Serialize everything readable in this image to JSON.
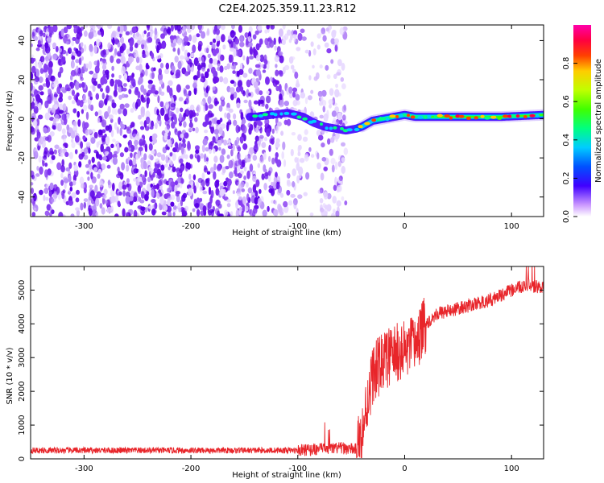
{
  "title": "C2E4.2025.359.11.23.R12",
  "colors": {
    "snr_line": "#e8252a",
    "speckle": "#6a10e8",
    "frame": "#000000"
  },
  "chart_data": [
    {
      "type": "heatmap",
      "xlabel": "Height of straight line (km)",
      "ylabel": "Frequency (Hz)",
      "xlim": [
        -350,
        130
      ],
      "ylim": [
        -50,
        48
      ],
      "xticks": [
        -300,
        -200,
        -100,
        0,
        100
      ],
      "yticks": [
        -40,
        -20,
        0,
        20,
        40
      ],
      "colorbar": {
        "label": "Normalized spectral amplitude",
        "range": [
          0,
          1
        ],
        "ticks": [
          0.0,
          0.2,
          0.4,
          0.6,
          0.8
        ],
        "tick_labels": [
          "0.0",
          "0.2",
          "0.4",
          "0.6",
          "0.8"
        ],
        "colormap": [
          "#cc99ff",
          "#4000ff",
          "#0060ff",
          "#00ccff",
          "#00ff80",
          "#40ff00",
          "#c0ff00",
          "#ffcc00",
          "#ff4000",
          "#ff0040",
          "#ff00aa"
        ]
      },
      "noise_region_x": [
        -350,
        -55
      ],
      "signal_track": {
        "x": [
          -140,
          -125,
          -110,
          -95,
          -85,
          -75,
          -65,
          -55,
          -45,
          -40,
          -30,
          -20,
          -10,
          0,
          10,
          30,
          60,
          90,
          130
        ],
        "y": [
          1,
          2,
          3,
          1,
          -2,
          -4,
          -5,
          -6,
          -5,
          -4,
          -1,
          0,
          1,
          2,
          1,
          1,
          1,
          1,
          2
        ]
      }
    },
    {
      "type": "line",
      "xlabel": "Height of straight line (km)",
      "ylabel": "SNR (10 * v/v)",
      "xlim": [
        -350,
        130
      ],
      "ylim": [
        0,
        5700
      ],
      "xticks": [
        -300,
        -200,
        -100,
        0,
        100
      ],
      "yticks": [
        0,
        1000,
        2000,
        3000,
        4000,
        5000
      ],
      "profile": {
        "x": [
          -350,
          -100,
          -75,
          -60,
          -45,
          -40,
          -35,
          -30,
          -20,
          -10,
          0,
          10,
          20,
          30,
          50,
          80,
          100,
          115,
          130
        ],
        "y": [
          250,
          250,
          300,
          320,
          280,
          700,
          1700,
          2500,
          2900,
          3100,
          3200,
          3400,
          4000,
          4300,
          4450,
          4700,
          5000,
          5150,
          5050
        ]
      }
    }
  ]
}
